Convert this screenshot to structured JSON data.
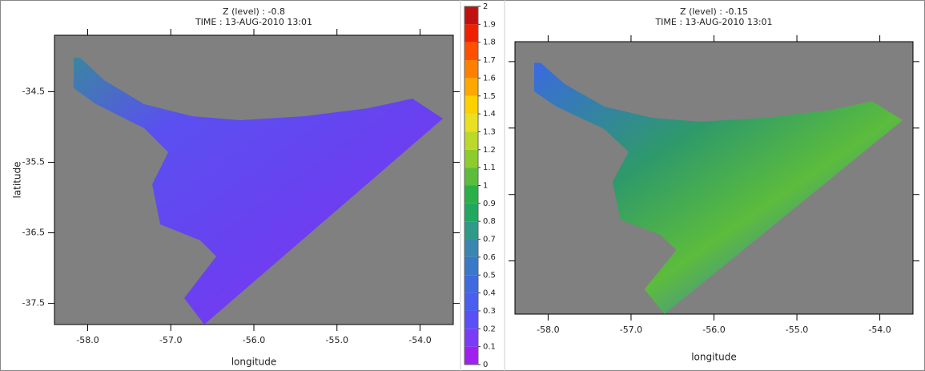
{
  "chart_data": [
    {
      "type": "quiver",
      "title_lines": [
        "Z (level) : -0.8",
        "TIME : 13-AUG-2010 13:01"
      ],
      "xlabel": "longitude",
      "ylabel": "latitude",
      "xlim": [
        -58.4,
        -53.6
      ],
      "ylim": [
        -37.8,
        -33.7
      ],
      "xticks": [
        {
          "value": -58,
          "label": "-58.0"
        },
        {
          "value": -57,
          "label": "-57.0"
        },
        {
          "value": -56,
          "label": "-56.0"
        },
        {
          "value": -55,
          "label": "-55.0"
        },
        {
          "value": -54,
          "label": "-54.0"
        }
      ],
      "yticks": [
        -37.5,
        -36.5,
        -35.5,
        -34.5
      ],
      "yticklabels": true
    },
    {
      "type": "quiver",
      "title_lines": [
        "Z (level) : -0.15",
        "TIME : 13-AUG-2010 13:01"
      ],
      "xlabel": "longitude",
      "xlim": [
        -58.4,
        -53.6
      ],
      "ylim": [
        -37.8,
        -33.7
      ],
      "xticks": [
        {
          "value": -58,
          "label": "-58.0"
        },
        {
          "value": -57,
          "label": "-57.0"
        },
        {
          "value": -56,
          "label": "-56.0"
        },
        {
          "value": -55,
          "label": "-55.0"
        },
        {
          "value": -54,
          "label": "-54.0"
        }
      ],
      "yticks": [
        -37,
        -36,
        -35,
        -34
      ],
      "yticklabels": false
    },
    {
      "type": "colorbar",
      "ylim": [
        0,
        2
      ],
      "yticks": [
        0,
        0.1,
        0.2,
        0.3,
        0.4,
        0.5,
        0.6,
        0.7,
        0.8,
        0.9,
        1,
        1.1,
        1.2,
        1.3,
        1.4,
        1.5,
        1.6,
        1.7,
        1.8,
        1.9,
        2
      ],
      "colors": [
        "#a020f0",
        "#7a3cf5",
        "#5a50f5",
        "#4a5ef0",
        "#3f6ae0",
        "#3a78c8",
        "#3a86b0",
        "#2e9a8a",
        "#1fa860",
        "#2ab048",
        "#5cbc3c",
        "#8ecc2e",
        "#bcd82a",
        "#e8e020",
        "#ffd000",
        "#ffa800",
        "#ff8000",
        "#ff5000",
        "#ee2000",
        "#c01010"
      ]
    }
  ]
}
